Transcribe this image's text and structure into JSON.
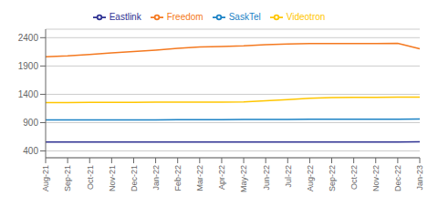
{
  "chart_data": {
    "type": "line",
    "categories": [
      "Aug-21",
      "Sep-21",
      "Oct-21",
      "Nov-21",
      "Dec-21",
      "Jan-22",
      "Feb-22",
      "Mar-22",
      "Apr-22",
      "May-22",
      "Jun-22",
      "Jul-22",
      "Aug-22",
      "Sep-22",
      "Oct-22",
      "Nov-22",
      "Dec-22",
      "Jan-23"
    ],
    "series": [
      {
        "name": "Freedom",
        "color": "#F47920",
        "values": [
          2065,
          2080,
          2105,
          2130,
          2155,
          2180,
          2210,
          2235,
          2245,
          2255,
          2275,
          2290,
          2295,
          2295,
          2295,
          2298,
          2300,
          2205
        ]
      },
      {
        "name": "Videotron",
        "color": "#FFC600",
        "values": [
          1255,
          1255,
          1257,
          1258,
          1260,
          1262,
          1263,
          1264,
          1264,
          1268,
          1285,
          1308,
          1330,
          1342,
          1345,
          1348,
          1350,
          1352
        ]
      },
      {
        "name": "SaskTel",
        "color": "#1B82C5",
        "values": [
          950,
          950,
          950,
          950,
          950,
          950,
          952,
          952,
          953,
          955,
          956,
          958,
          960,
          960,
          960,
          961,
          962,
          963
        ]
      },
      {
        "name": "Eastlink",
        "color": "#2E3192",
        "values": [
          558,
          558,
          558,
          558,
          558,
          558,
          558,
          558,
          558,
          558,
          558,
          558,
          558,
          558,
          558,
          558,
          558,
          560
        ]
      }
    ],
    "ylim": [
      280,
      2550
    ],
    "yticks": [
      400,
      900,
      1400,
      1900,
      2400
    ],
    "grid": true,
    "legend": "top"
  }
}
